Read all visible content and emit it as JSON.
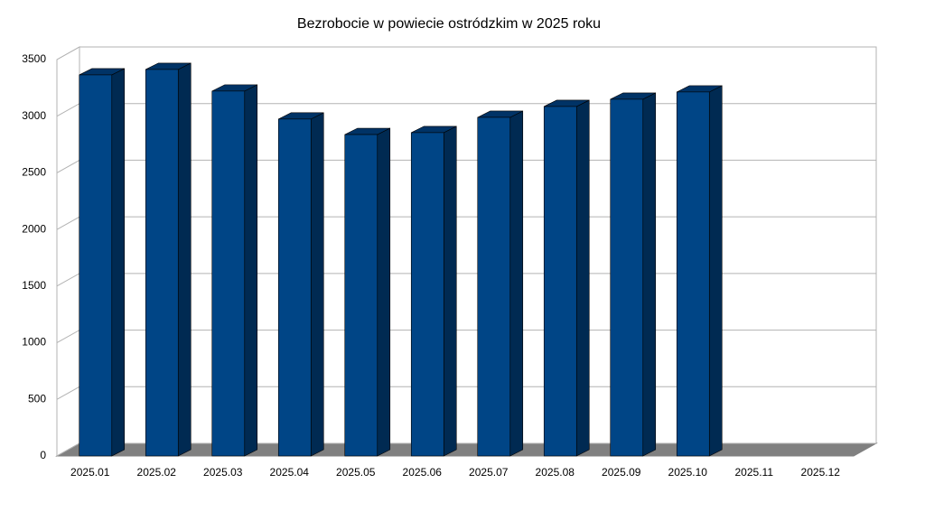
{
  "chart_data": {
    "type": "bar",
    "title": "Bezrobocie w powiecie ostródzkim w 2025 roku",
    "categories": [
      "2025.01",
      "2025.02",
      "2025.03",
      "2025.04",
      "2025.05",
      "2025.06",
      "2025.07",
      "2025.08",
      "2025.09",
      "2025.10",
      "2025.11",
      "2025.12"
    ],
    "values": [
      3365,
      3413,
      3222,
      2975,
      2838,
      2855,
      2990,
      3086,
      3150,
      3214,
      null,
      null
    ],
    "color": "#004586",
    "ylim": [
      0,
      3500
    ],
    "yticks": [
      0,
      500,
      1000,
      1500,
      2000,
      2500,
      3000,
      3500
    ],
    "grid": true
  }
}
